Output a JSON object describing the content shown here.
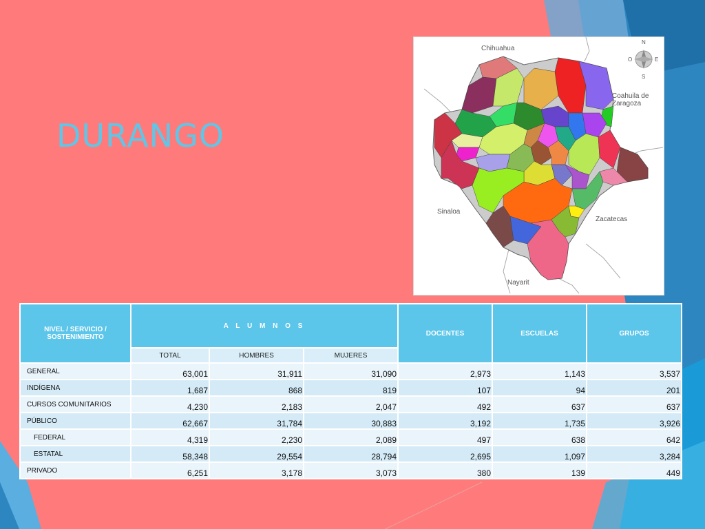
{
  "slide": {
    "title": "DURANGO",
    "colors": {
      "background": "#ff7b7b",
      "title": "#5fc6e8",
      "header": "#5bc5ea",
      "decor_blue": "#2e86c1"
    }
  },
  "map": {
    "labels": {
      "north": "Chihuahua",
      "northeast": "Coahuila de Zaragoza",
      "west": "Sinaloa",
      "east": "Zacatecas",
      "south": "Nayarit"
    },
    "compass": {
      "n": "N",
      "s": "S",
      "e": "E",
      "w": "O"
    }
  },
  "table": {
    "headers": {
      "nivel": "NIVEL / SERVICIO / SOSTENIMIENTO",
      "alumnos": "A L U M N O S",
      "docentes": "DOCENTES",
      "escuelas": "ESCUELAS",
      "grupos": "GRUPOS",
      "total": "TOTAL",
      "hombres": "HOMBRES",
      "mujeres": "MUJERES"
    },
    "rows": [
      {
        "label": "GENERAL",
        "total": "63,001",
        "hombres": "31,911",
        "mujeres": "31,090",
        "docentes": "2,973",
        "escuelas": "1,143",
        "grupos": "3,537"
      },
      {
        "label": "INDÍGENA",
        "total": "1,687",
        "hombres": "868",
        "mujeres": "819",
        "docentes": "107",
        "escuelas": "94",
        "grupos": "201"
      },
      {
        "label": "CURSOS COMUNITARIOS",
        "total": "4,230",
        "hombres": "2,183",
        "mujeres": "2,047",
        "docentes": "492",
        "escuelas": "637",
        "grupos": "637"
      },
      {
        "label": "PÚBLICO",
        "total": "62,667",
        "hombres": "31,784",
        "mujeres": "30,883",
        "docentes": "3,192",
        "escuelas": "1,735",
        "grupos": "3,926"
      },
      {
        "label": "FEDERAL",
        "total": "4,319",
        "hombres": "2,230",
        "mujeres": "2,089",
        "docentes": "497",
        "escuelas": "638",
        "grupos": "642"
      },
      {
        "label": "ESTATAL",
        "total": "58,348",
        "hombres": "29,554",
        "mujeres": "28,794",
        "docentes": "2,695",
        "escuelas": "1,097",
        "grupos": "3,284"
      },
      {
        "label": "PRIVADO",
        "total": "6,251",
        "hombres": "3,178",
        "mujeres": "3,073",
        "docentes": "380",
        "escuelas": "139",
        "grupos": "449"
      }
    ]
  }
}
